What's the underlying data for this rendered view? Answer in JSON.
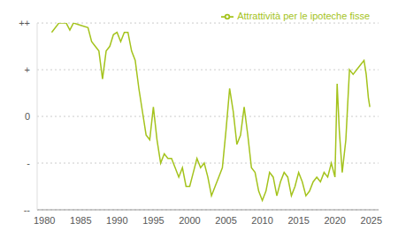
{
  "chart_data": {
    "type": "line",
    "x": [
      1981,
      1982,
      1983,
      1983.5,
      1984,
      1985,
      1986,
      1986.5,
      1987,
      1987.5,
      1988,
      1988.5,
      1989,
      1989.5,
      1990,
      1990.5,
      1991,
      1991.5,
      1992,
      1992.5,
      1993,
      1993.5,
      1994,
      1994.5,
      1995,
      1995.5,
      1996,
      1996.5,
      1997,
      1997.5,
      1998,
      1998.5,
      1999,
      1999.5,
      2000,
      2000.5,
      2001,
      2001.5,
      2002,
      2002.5,
      2003,
      2003.5,
      2004,
      2004.5,
      2005,
      2005.5,
      2006,
      2006.5,
      2007,
      2007.5,
      2008,
      2008.5,
      2009,
      2009.5,
      2010,
      2010.5,
      2011,
      2011.5,
      2012,
      2012.5,
      2013,
      2013.5,
      2014,
      2014.5,
      2015,
      2015.5,
      2016,
      2016.5,
      2017,
      2017.5,
      2018,
      2018.5,
      2019,
      2019.5,
      2020,
      2020.3,
      2020.6,
      2021,
      2021.5,
      2022,
      2022.5,
      2023,
      2023.5,
      2024,
      2024.3,
      2024.6,
      2024.8
    ],
    "series": [
      {
        "name": "Attrattività per le ipoteche fisse",
        "color": "#a4c31c",
        "values": [
          1.8,
          2.0,
          2.0,
          1.85,
          2.0,
          1.95,
          1.9,
          1.6,
          1.5,
          1.4,
          0.8,
          1.4,
          1.5,
          1.75,
          1.8,
          1.6,
          1.8,
          1.8,
          1.4,
          1.2,
          0.6,
          0.1,
          -0.4,
          -0.5,
          0.2,
          -0.5,
          -1.0,
          -0.8,
          -0.9,
          -0.9,
          -1.1,
          -1.3,
          -1.1,
          -1.5,
          -1.5,
          -1.2,
          -0.9,
          -1.1,
          -1.0,
          -1.3,
          -1.7,
          -1.5,
          -1.3,
          -1.1,
          -0.3,
          0.6,
          0.1,
          -0.6,
          -0.4,
          0.2,
          -0.4,
          -1.1,
          -1.2,
          -1.6,
          -1.8,
          -1.6,
          -1.2,
          -1.3,
          -1.7,
          -1.4,
          -1.2,
          -1.3,
          -1.7,
          -1.5,
          -1.2,
          -1.4,
          -1.7,
          -1.6,
          -1.4,
          -1.3,
          -1.4,
          -1.2,
          -1.3,
          -1.0,
          -1.3,
          0.7,
          -0.3,
          -1.2,
          -0.5,
          1.0,
          0.9,
          1.0,
          1.1,
          1.2,
          0.9,
          0.4,
          0.2
        ]
      }
    ],
    "xlim": [
      1979,
      2026
    ],
    "xticks": [
      1980,
      1985,
      1990,
      1995,
      2000,
      2005,
      2010,
      2015,
      2020,
      2025
    ],
    "ylim": [
      -2,
      2
    ],
    "yticks": [
      {
        "value": -2,
        "label": "--"
      },
      {
        "value": -1,
        "label": "-"
      },
      0,
      {
        "value": 1,
        "label": "+"
      },
      {
        "value": 2,
        "label": "++"
      }
    ],
    "grid": true,
    "legend": "upper right"
  }
}
